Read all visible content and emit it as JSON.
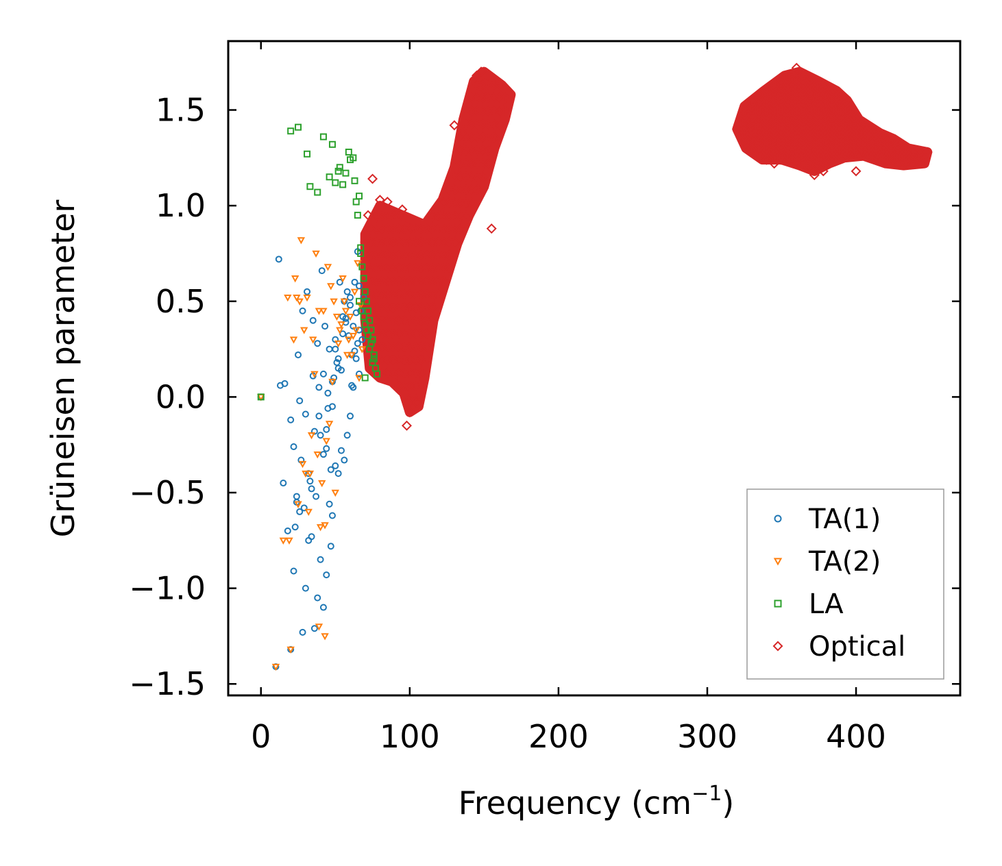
{
  "chart_data": {
    "type": "scatter",
    "xlabel": "Frequency (cm",
    "xlabel_sup": "−1",
    "xlabel_close": ")",
    "ylabel": "Grüneisen parameter",
    "xlim": [
      -22,
      470
    ],
    "ylim": [
      -1.56,
      1.86
    ],
    "xticks": [
      0,
      100,
      200,
      300,
      400
    ],
    "xtick_labels": [
      "0",
      "100",
      "200",
      "300",
      "400"
    ],
    "yticks": [
      -1.5,
      -1.0,
      -0.5,
      0.0,
      0.5,
      1.0,
      1.5
    ],
    "ytick_labels": [
      "−1.5",
      "−1.0",
      "−0.5",
      "0.0",
      "0.5",
      "1.0",
      "1.5"
    ],
    "legend_position": "bottom-right",
    "series": [
      {
        "name": "TA(1)",
        "marker": "circle",
        "color": "#1f77b4",
        "x": [
          0,
          10,
          20,
          22,
          24,
          26,
          28,
          30,
          32,
          34,
          36,
          38,
          40,
          42,
          44,
          46,
          48,
          50,
          52,
          54,
          56,
          58,
          60,
          62,
          64,
          66,
          12,
          15,
          18,
          22,
          25,
          28,
          31,
          35,
          38,
          42,
          45,
          48,
          50,
          52,
          55,
          58,
          60,
          63,
          65,
          13,
          27,
          40,
          44,
          47,
          30,
          33,
          36,
          39,
          41,
          43,
          46,
          49,
          51,
          53,
          56,
          59,
          61,
          64,
          66,
          68,
          20,
          24,
          29,
          34,
          37,
          39,
          42,
          45,
          48,
          52,
          55,
          57,
          60,
          62,
          65,
          67,
          69,
          16,
          23,
          26,
          32,
          35,
          44,
          47,
          50,
          54,
          57,
          61,
          63,
          66
        ],
        "y": [
          0.0,
          -1.41,
          -1.32,
          -0.91,
          -0.55,
          -0.6,
          -1.23,
          -1.0,
          -0.75,
          -0.73,
          -1.21,
          -1.05,
          -0.85,
          -1.1,
          -0.93,
          -0.56,
          -0.62,
          -0.36,
          -0.4,
          -0.28,
          -0.33,
          -0.2,
          -0.1,
          0.05,
          0.2,
          0.35,
          0.72,
          -0.45,
          -0.7,
          -0.26,
          0.22,
          0.45,
          0.55,
          0.4,
          0.28,
          0.12,
          0.02,
          -0.05,
          0.3,
          0.15,
          0.42,
          0.55,
          0.48,
          0.6,
          0.76,
          0.06,
          -0.33,
          -0.2,
          -0.27,
          -0.38,
          -0.09,
          -0.44,
          -0.18,
          0.05,
          0.66,
          0.37,
          0.25,
          0.1,
          0.18,
          0.6,
          0.5,
          0.32,
          0.22,
          0.44,
          0.12,
          0.3,
          -0.12,
          -0.52,
          -0.58,
          -0.48,
          -0.52,
          -0.1,
          -0.3,
          -0.06,
          0.08,
          0.2,
          0.33,
          0.41,
          0.52,
          0.37,
          0.28,
          0.45,
          0.52,
          0.07,
          -0.68,
          -0.02,
          -0.4,
          0.11,
          -0.17,
          -0.78,
          0.25,
          0.14,
          0.39,
          0.06,
          0.24,
          0.58
        ]
      },
      {
        "name": "TA(2)",
        "marker": "triangle-down",
        "color": "#ff7f0e",
        "x": [
          0,
          10,
          20,
          15,
          18,
          22,
          25,
          27,
          29,
          31,
          33,
          35,
          37,
          39,
          41,
          43,
          45,
          47,
          49,
          51,
          53,
          55,
          57,
          59,
          61,
          63,
          65,
          67,
          26,
          30,
          34,
          38,
          42,
          46,
          50,
          54,
          58,
          62,
          66,
          24,
          28,
          32,
          36,
          40,
          44,
          48,
          52,
          56,
          60,
          64,
          68,
          19,
          23,
          39,
          43
        ],
        "y": [
          0.0,
          -1.41,
          -1.32,
          -0.75,
          0.52,
          0.3,
          -0.56,
          0.82,
          0.35,
          0.52,
          -0.4,
          0.3,
          0.75,
          0.45,
          -0.45,
          -0.67,
          0.68,
          0.58,
          0.5,
          0.42,
          0.35,
          0.62,
          0.45,
          0.3,
          0.22,
          0.55,
          0.7,
          0.48,
          0.5,
          -0.4,
          -0.2,
          -0.3,
          0.45,
          -0.14,
          -0.5,
          0.38,
          0.22,
          0.32,
          0.1,
          0.52,
          -0.35,
          -0.6,
          0.12,
          -0.68,
          -0.23,
          0.08,
          0.28,
          0.5,
          0.42,
          0.35,
          0.25,
          -0.75,
          0.62,
          -1.2,
          -1.25
        ]
      },
      {
        "name": "LA",
        "marker": "square",
        "color": "#2ca02c",
        "x": [
          0,
          20,
          25,
          31,
          33,
          38,
          42,
          46,
          48,
          50,
          52,
          53,
          55,
          57,
          59,
          60,
          62,
          63,
          64,
          65,
          66,
          67,
          68,
          69,
          70,
          71,
          72,
          73,
          74,
          75,
          76,
          77,
          78,
          66,
          68,
          70,
          72,
          74,
          76,
          69,
          71,
          73,
          75,
          67,
          70
        ],
        "y": [
          0.0,
          1.39,
          1.41,
          1.27,
          1.1,
          1.07,
          1.36,
          1.15,
          1.32,
          1.12,
          1.18,
          1.2,
          1.11,
          1.17,
          1.28,
          1.24,
          1.25,
          1.13,
          1.02,
          0.95,
          1.05,
          0.75,
          0.68,
          0.62,
          0.55,
          0.5,
          0.45,
          0.4,
          0.35,
          0.3,
          0.22,
          0.15,
          0.12,
          0.5,
          0.45,
          0.38,
          0.32,
          0.28,
          0.2,
          0.42,
          0.35,
          0.25,
          0.18,
          0.78,
          0.1
        ]
      },
      {
        "name": "Optical",
        "marker": "diamond",
        "color": "#d62728",
        "clusters": [
          {
            "polygon": [
              [
                70,
                0.85
              ],
              [
                80,
                1.0
              ],
              [
                95,
                0.95
              ],
              [
                110,
                0.9
              ],
              [
                122,
                1.03
              ],
              [
                130,
                1.2
              ],
              [
                136,
                1.45
              ],
              [
                143,
                1.65
              ],
              [
                150,
                1.7
              ],
              [
                162,
                1.63
              ],
              [
                168,
                1.58
              ],
              [
                164,
                1.45
              ],
              [
                157,
                1.3
              ],
              [
                150,
                1.1
              ],
              [
                140,
                0.95
              ],
              [
                132,
                0.8
              ],
              [
                124,
                0.6
              ],
              [
                116,
                0.4
              ],
              [
                110,
                0.1
              ],
              [
                106,
                -0.05
              ],
              [
                100,
                -0.08
              ],
              [
                96,
                0.02
              ],
              [
                88,
                0.08
              ],
              [
                80,
                0.1
              ],
              [
                73,
                0.15
              ],
              [
                70,
                0.4
              ]
            ]
          },
          {
            "polygon": [
              [
                320,
                1.4
              ],
              [
                325,
                1.52
              ],
              [
                338,
                1.6
              ],
              [
                352,
                1.68
              ],
              [
                362,
                1.7
              ],
              [
                375,
                1.65
              ],
              [
                387,
                1.6
              ],
              [
                394,
                1.55
              ],
              [
                402,
                1.45
              ],
              [
                416,
                1.38
              ],
              [
                425,
                1.35
              ],
              [
                435,
                1.3
              ],
              [
                448,
                1.28
              ],
              [
                446,
                1.22
              ],
              [
                432,
                1.21
              ],
              [
                420,
                1.22
              ],
              [
                405,
                1.26
              ],
              [
                392,
                1.25
              ],
              [
                382,
                1.22
              ],
              [
                372,
                1.18
              ],
              [
                362,
                1.21
              ],
              [
                350,
                1.24
              ],
              [
                337,
                1.24
              ],
              [
                326,
                1.3
              ]
            ]
          }
        ],
        "outliers_x": [
          98,
          100,
          102,
          105,
          80,
          85,
          90,
          95,
          75,
          72,
          130,
          135,
          145,
          148,
          150,
          155,
          360,
          368,
          372,
          378,
          345,
          340,
          330,
          400,
          425,
          440
        ],
        "outliers_y": [
          -0.15,
          -0.08,
          -0.05,
          -0.03,
          1.03,
          1.02,
          0.96,
          0.98,
          1.14,
          0.95,
          1.42,
          1.38,
          1.68,
          1.7,
          1.6,
          0.88,
          1.72,
          1.2,
          1.16,
          1.18,
          1.22,
          1.24,
          1.3,
          1.18,
          1.24,
          1.26
        ]
      }
    ]
  }
}
